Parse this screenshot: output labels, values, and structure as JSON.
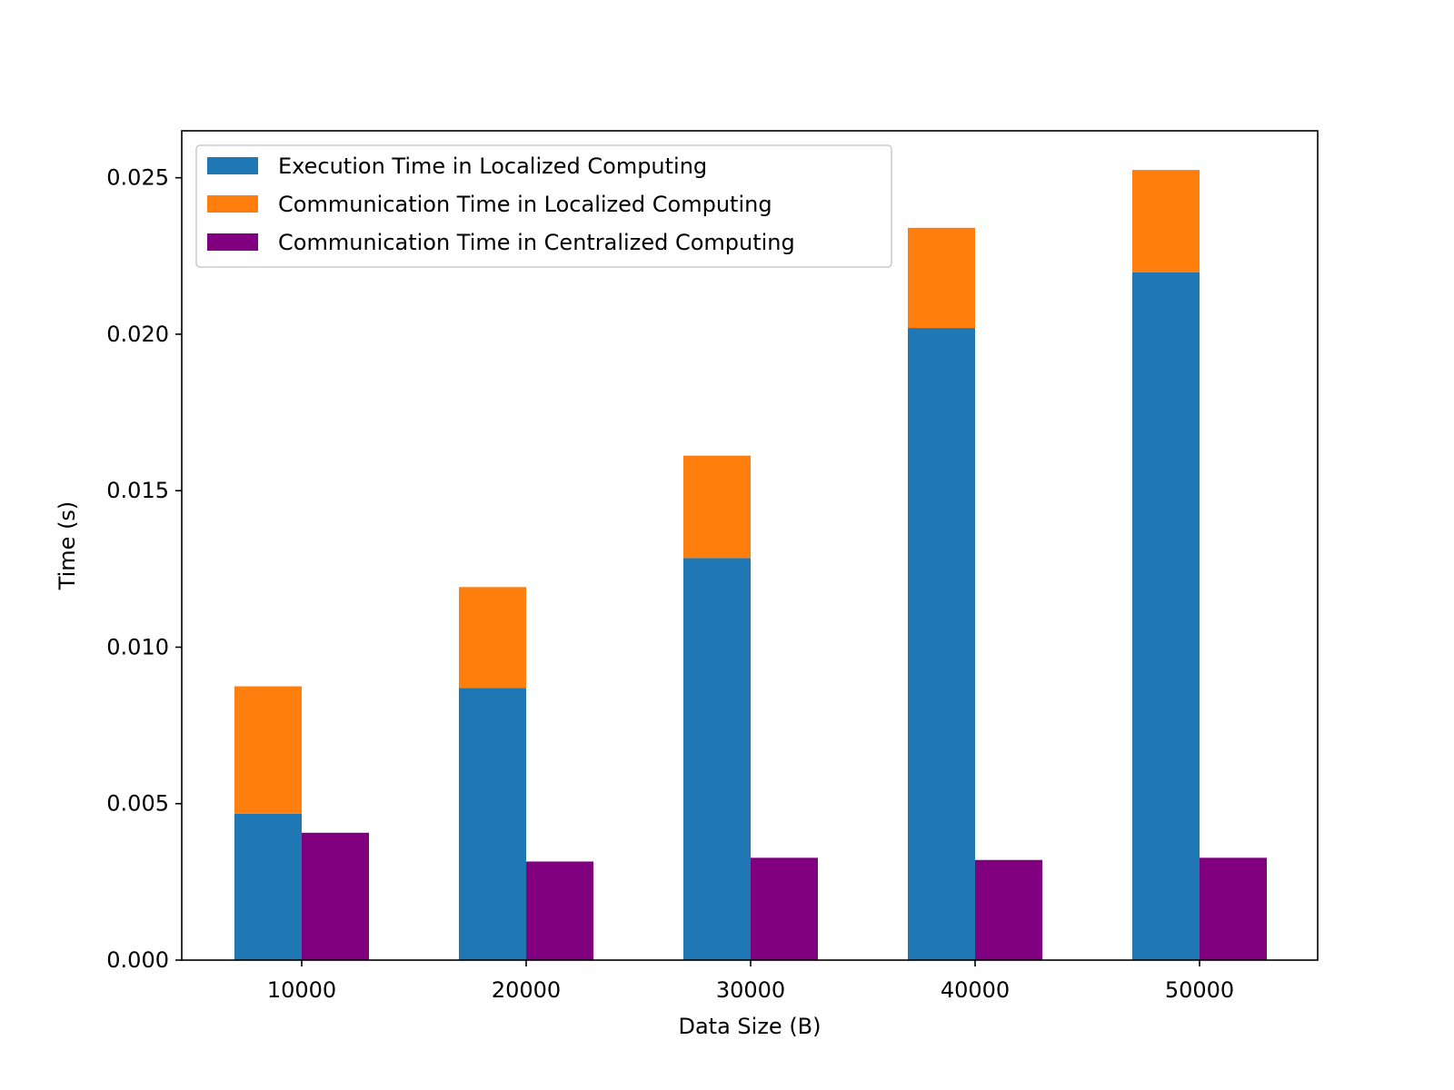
{
  "chart_data": {
    "type": "bar",
    "title": "",
    "xlabel": "Data Size (B)",
    "ylabel": "Time (s)",
    "categories": [
      "10000",
      "20000",
      "30000",
      "40000",
      "50000"
    ],
    "ylim": [
      0,
      0.0265
    ],
    "yticks": [
      0.0,
      0.005,
      0.01,
      0.015,
      0.02,
      0.025
    ],
    "ytick_labels": [
      "0.000",
      "0.005",
      "0.010",
      "0.015",
      "0.020",
      "0.025"
    ],
    "grid": false,
    "legend_position": "top-left",
    "series": [
      {
        "name": "Execution Time in Localized Computing",
        "group": "localized",
        "stack": "bottom",
        "color": "#1f77b4",
        "values": [
          0.00468,
          0.0087,
          0.01285,
          0.0202,
          0.02198
        ]
      },
      {
        "name": "Communication Time in Localized Computing",
        "group": "localized",
        "stack": "top",
        "color": "#ff7f0e",
        "values": [
          0.00407,
          0.00322,
          0.00327,
          0.0032,
          0.00327
        ]
      },
      {
        "name": "Communication Time in Centralized Computing",
        "group": "centralized",
        "stack": "single",
        "color": "#800080",
        "values": [
          0.00407,
          0.00315,
          0.00327,
          0.0032,
          0.00327
        ]
      }
    ]
  }
}
